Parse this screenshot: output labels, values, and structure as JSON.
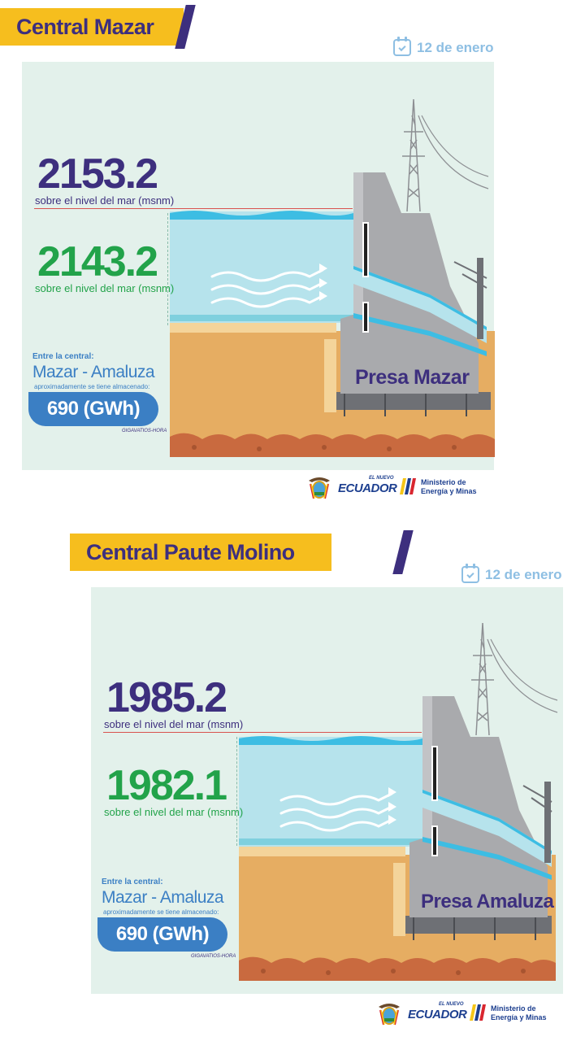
{
  "sections": [
    {
      "title": "Central Mazar",
      "date": "12 de enero",
      "upper_level": "2153.2",
      "upper_level_caption": "sobre el nivel del mar (msnm)",
      "lower_level": "2143.2",
      "lower_level_caption": "sobre el nivel del mar (msnm)",
      "storage_label": "Entre la central:",
      "storage_name": "Mazar - Amaluza",
      "storage_sub": "aproximadamente se tiene almacenado:",
      "storage_value": "690 (GWh)",
      "storage_unit": "GIGAVATIOS-HORA",
      "dam_name": "Presa Mazar",
      "logo_small": "EL NUEVO",
      "logo_name": "ECUADOR",
      "ministry": "Ministerio de Energía y Minas"
    },
    {
      "title": "Central Paute Molino",
      "date": "12 de enero",
      "upper_level": "1985.2",
      "upper_level_caption": "sobre el nivel del mar (msnm)",
      "lower_level": "1982.1",
      "lower_level_caption": "sobre el nivel del mar (msnm)",
      "storage_label": "Entre la central:",
      "storage_name": "Mazar - Amaluza",
      "storage_sub": "aproximadamente se tiene almacenado:",
      "storage_value": "690 (GWh)",
      "storage_unit": "GIGAVATIOS-HORA",
      "dam_name": "Presa Amaluza",
      "logo_small": "EL NUEVO",
      "logo_name": "ECUADOR",
      "ministry": "Ministerio de Energía y Minas"
    }
  ],
  "colors": {
    "banner": "#f6be1e",
    "purple": "#3d2f7e",
    "green": "#22a34a",
    "blue": "#3b7fc4",
    "water": "#b6e3ec",
    "ground": "#e6ad62",
    "concrete": "#a9aaad"
  },
  "icons": [
    "calendar-icon",
    "water-flow-arrows-icon",
    "transmission-tower-icon",
    "coat-of-arms-icon"
  ]
}
